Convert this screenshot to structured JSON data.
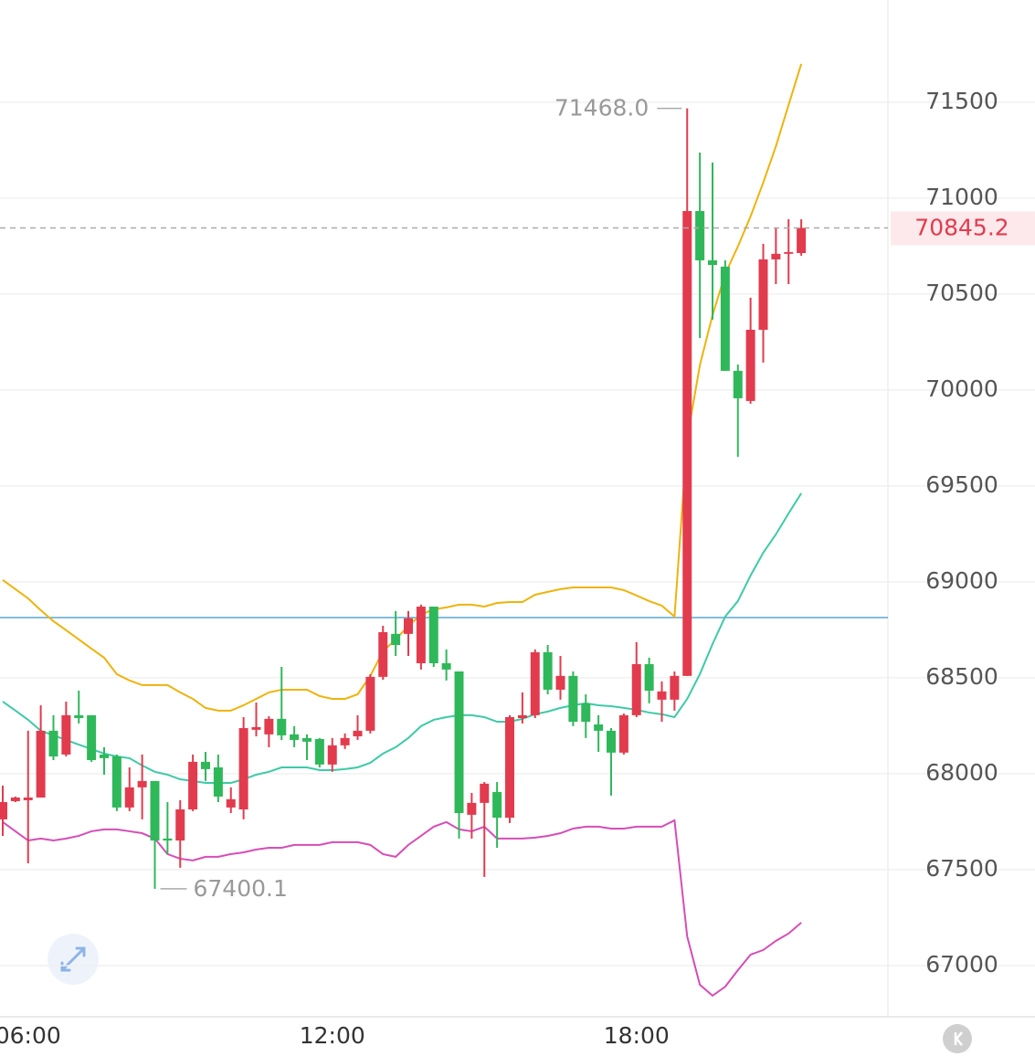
{
  "chart_data": {
    "type": "candlestick",
    "categories": [
      null,
      null,
      "06:00",
      null,
      null,
      null,
      null,
      null,
      null,
      null,
      null,
      null,
      null,
      null,
      null,
      null,
      null,
      null,
      null,
      null,
      null,
      null,
      null,
      null,
      null,
      null,
      "12:00",
      null,
      null,
      null,
      null,
      null,
      null,
      null,
      null,
      null,
      null,
      null,
      null,
      null,
      null,
      null,
      null,
      null,
      null,
      null,
      null,
      null,
      null,
      null,
      "18:00",
      null,
      null,
      null,
      null,
      null,
      null,
      null,
      null,
      null,
      null,
      null,
      null,
      null
    ],
    "open": [
      67762,
      67857,
      67862,
      67876,
      68224,
      68100,
      68305,
      68305,
      68100,
      68090,
      67824,
      67929,
      67962,
      67662,
      67652,
      67814,
      68062,
      68033,
      67824,
      67814,
      68229,
      68205,
      68286,
      68205,
      68186,
      68181,
      68048,
      68148,
      68195,
      68224,
      68505,
      68729,
      68729,
      68576,
      68871,
      68576,
      68533,
      67786,
      67848,
      67905,
      67771,
      68290,
      68305,
      68633,
      68438,
      68510,
      68367,
      68257,
      68224,
      68110,
      68305,
      68571,
      68386,
      68386,
      68510,
      70933,
      70676,
      70643,
      70100,
      69943,
      70314,
      70681,
      70710,
      70714
    ],
    "high": [
      67938,
      67881,
      68224,
      68357,
      68305,
      68376,
      68433,
      68305,
      68138,
      68100,
      68033,
      68100,
      67962,
      67852,
      67862,
      68100,
      68114,
      68100,
      67929,
      68295,
      68371,
      68300,
      68557,
      68248,
      68205,
      68186,
      68186,
      68210,
      68305,
      68519,
      68771,
      68848,
      68848,
      68881,
      68871,
      68648,
      68533,
      67900,
      67957,
      67957,
      68305,
      68424,
      68648,
      68671,
      68614,
      68533,
      68414,
      68305,
      68238,
      68314,
      68686,
      68605,
      68481,
      68533,
      71468,
      71238,
      71186,
      70676,
      70133,
      70481,
      70762,
      70843,
      70890,
      70890
    ],
    "low": [
      67676,
      67852,
      67533,
      67876,
      68071,
      68090,
      68262,
      68062,
      67995,
      67805,
      67805,
      67762,
      67400.1,
      67581,
      67510,
      67805,
      67962,
      67852,
      67795,
      67762,
      68195,
      68138,
      68176,
      68138,
      68071,
      68033,
      68010,
      68129,
      68176,
      68210,
      68490,
      68614,
      68614,
      68543,
      68557,
      68486,
      67662,
      67662,
      67462,
      67614,
      67743,
      68262,
      68290,
      68414,
      68386,
      68248,
      68186,
      68114,
      67886,
      68100,
      68295,
      68367,
      68271,
      68329,
      68510,
      70271,
      70367,
      70100,
      69652,
      69929,
      70143,
      70552,
      70552,
      70700
    ],
    "close": [
      67852,
      67876,
      67876,
      68224,
      68090,
      68305,
      68290,
      68071,
      68081,
      67824,
      67929,
      67962,
      67652,
      67652,
      67814,
      68062,
      68024,
      67881,
      67867,
      68238,
      68243,
      68286,
      68200,
      68176,
      68167,
      68048,
      68148,
      68186,
      68224,
      68505,
      68738,
      68671,
      68810,
      68871,
      68576,
      68543,
      67795,
      67848,
      67948,
      67771,
      68295,
      68305,
      68633,
      68438,
      68510,
      68271,
      68271,
      68224,
      68110,
      68305,
      68571,
      68433,
      68429,
      68510,
      70933,
      70676,
      70652,
      70100,
      69957,
      70314,
      70681,
      70710,
      70719,
      70845.2
    ],
    "up_color": "#e23b4e",
    "down_color": "#2fb85a",
    "overlays": [
      {
        "color": "#efb30c",
        "values": [
          69010,
          68962,
          68914,
          68852,
          68795,
          68748,
          68700,
          68652,
          68605,
          68519,
          68486,
          68462,
          68462,
          68462,
          68424,
          68390,
          68343,
          68329,
          68329,
          68357,
          68390,
          68424,
          68438,
          68438,
          68438,
          68405,
          68390,
          68390,
          68414,
          68510,
          68638,
          68700,
          68771,
          68829,
          68857,
          68867,
          68881,
          68881,
          68871,
          68890,
          68895,
          68895,
          68933,
          68948,
          68962,
          68971,
          68971,
          68971,
          68971,
          68957,
          68929,
          68900,
          68876,
          68819,
          69748,
          70129,
          70390,
          70605,
          70748,
          70905,
          71081,
          71271,
          71486,
          71700
        ]
      },
      {
        "color": "#3ecaa6",
        "values": [
          68376,
          68329,
          68281,
          68224,
          68200,
          68176,
          68152,
          68129,
          68105,
          68090,
          68081,
          68043,
          68010,
          67995,
          67971,
          67962,
          67952,
          67952,
          67952,
          67971,
          67995,
          68010,
          68033,
          68033,
          68033,
          68019,
          68019,
          68024,
          68033,
          68057,
          68105,
          68138,
          68186,
          68248,
          68281,
          68295,
          68305,
          68305,
          68295,
          68271,
          68271,
          68286,
          68310,
          68324,
          68343,
          68357,
          68367,
          68357,
          68352,
          68343,
          68333,
          68319,
          68310,
          68295,
          68390,
          68519,
          68676,
          68819,
          68900,
          69033,
          69152,
          69248,
          69357,
          69462
        ]
      },
      {
        "color": "#d64db6",
        "values": [
          67748,
          67700,
          67652,
          67662,
          67652,
          67662,
          67676,
          67700,
          67710,
          67710,
          67700,
          67690,
          67662,
          67581,
          67557,
          67548,
          67567,
          67567,
          67581,
          67590,
          67605,
          67614,
          67614,
          67629,
          67629,
          67629,
          67643,
          67643,
          67643,
          67629,
          67581,
          67567,
          67629,
          67676,
          67724,
          67748,
          67710,
          67700,
          67724,
          67662,
          67662,
          67662,
          67667,
          67676,
          67690,
          67714,
          67724,
          67724,
          67714,
          67714,
          67724,
          67724,
          67724,
          67757,
          67152,
          66900,
          66843,
          66890,
          66976,
          67057,
          67081,
          67129,
          67167,
          67224
        ]
      }
    ],
    "ylim": [
      66733,
      72033
    ],
    "yticks": [
      67000,
      67500,
      68000,
      68500,
      69000,
      69500,
      70000,
      70500,
      71000,
      71500
    ],
    "grid": true,
    "hline": {
      "value": 68814,
      "color": "#5aa7d6"
    },
    "last_price": 70845.2,
    "max_label": "71468.0",
    "min_label": "67400.1"
  }
}
